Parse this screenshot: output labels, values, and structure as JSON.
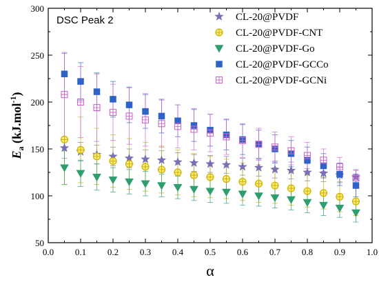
{
  "chart_data": {
    "type": "scatter",
    "annotation": "DSC Peak 2",
    "xlabel": "α",
    "ylabel": {
      "main": "E",
      "sub": "a",
      "units": " (kJ.mol",
      "sup": "-1",
      "close": ")"
    },
    "xlim": [
      0.0,
      1.0
    ],
    "ylim": [
      50,
      300
    ],
    "xticks": [
      0.0,
      0.1,
      0.2,
      0.3,
      0.4,
      0.5,
      0.6,
      0.7,
      0.8,
      0.9,
      1.0
    ],
    "xtick_labels": [
      "0.0",
      "0.1",
      "0.2",
      "0.3",
      "0.4",
      "0.5",
      "0.6",
      "0.7",
      "0.8",
      "0.9",
      "1.0"
    ],
    "yticks": [
      50,
      100,
      150,
      200,
      250,
      300
    ],
    "ytick_labels": [
      "50",
      "100",
      "150",
      "200",
      "250",
      "300"
    ],
    "legend_position": "top-right",
    "x": [
      0.05,
      0.1,
      0.15,
      0.2,
      0.25,
      0.3,
      0.35,
      0.4,
      0.45,
      0.5,
      0.55,
      0.6,
      0.65,
      0.7,
      0.75,
      0.8,
      0.85,
      0.9,
      0.95
    ],
    "series": [
      {
        "name": "CL-20@PVDF",
        "marker": "star",
        "color": "#7a6fb5",
        "values": [
          151,
          147,
          144,
          142,
          140,
          139,
          138,
          136,
          135,
          134,
          133,
          131,
          130,
          128,
          127,
          125,
          124,
          122,
          120
        ],
        "errors": [
          11,
          10,
          10,
          10,
          10,
          10,
          10,
          10,
          9,
          9,
          9,
          9,
          9,
          9,
          9,
          9,
          9,
          8,
          8
        ]
      },
      {
        "name": "CL-20@PVDF-CNT",
        "marker": "circle-cross",
        "color": "#c8b400",
        "fill": "#ffe87a",
        "values": [
          160,
          149,
          142,
          137,
          134,
          131,
          128,
          125,
          122,
          120,
          118,
          115,
          113,
          111,
          108,
          105,
          103,
          99,
          94
        ],
        "errors": [
          48,
          35,
          30,
          28,
          27,
          26,
          25,
          24,
          23,
          22,
          21,
          20,
          20,
          19,
          18,
          17,
          17,
          16,
          15
        ]
      },
      {
        "name": "CL-20@PVDF-Go",
        "marker": "triangle-down",
        "color": "#2e9e6e",
        "values": [
          130,
          124,
          120,
          117,
          115,
          113,
          111,
          109,
          107,
          105,
          104,
          102,
          100,
          98,
          96,
          93,
          90,
          87,
          82
        ],
        "errors": [
          18,
          14,
          14,
          13,
          13,
          13,
          12,
          12,
          12,
          12,
          12,
          12,
          11,
          11,
          11,
          11,
          11,
          10,
          10
        ]
      },
      {
        "name": "CL-20@PVDF-GCCo",
        "marker": "square",
        "color": "#2f62c7",
        "values": [
          230,
          222,
          211,
          203,
          197,
          190,
          185,
          180,
          175,
          170,
          165,
          160,
          155,
          150,
          145,
          138,
          132,
          123,
          111
        ],
        "errors": [
          22,
          20,
          20,
          19,
          19,
          18,
          18,
          17,
          17,
          17,
          16,
          16,
          15,
          15,
          14,
          14,
          13,
          12,
          12
        ]
      },
      {
        "name": "CL-20@PVDF-GCNi",
        "marker": "square-cross",
        "color": "#cc66cc",
        "values": [
          208,
          200,
          194,
          189,
          185,
          181,
          177,
          174,
          171,
          167,
          163,
          159,
          155,
          152,
          148,
          143,
          138,
          131,
          119
        ],
        "errors": [
          45,
          38,
          36,
          30,
          30,
          28,
          25,
          23,
          22,
          20,
          19,
          18,
          17,
          16,
          15,
          14,
          12,
          10,
          8
        ]
      }
    ]
  }
}
